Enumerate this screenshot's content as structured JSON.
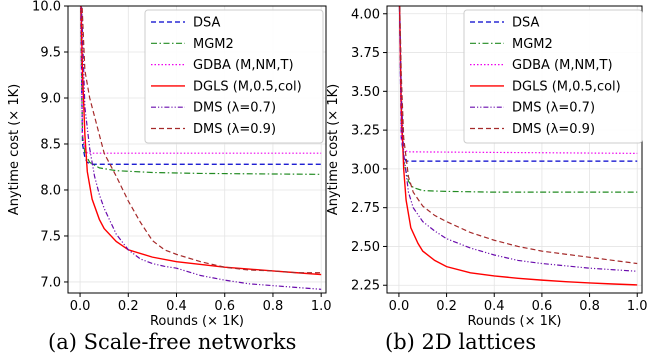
{
  "charts": [
    {
      "caption": "(a) Scale-free networks",
      "chart_data": {
        "type": "line",
        "title": "",
        "xlabel": "Rounds (× 1K)",
        "ylabel": "Anytime cost (× 1K)",
        "xlim": [
          -0.05,
          1.02
        ],
        "ylim": [
          6.88,
          10.0
        ],
        "xticks": [
          "0.0",
          "0.2",
          "0.4",
          "0.6",
          "0.8",
          "1.0"
        ],
        "xtick_values": [
          0.0,
          0.2,
          0.4,
          0.6,
          0.8,
          1.0
        ],
        "yticks": [
          "7.0",
          "7.5",
          "8.0",
          "8.5",
          "9.0",
          "9.5",
          "10.0"
        ],
        "ytick_values": [
          7.0,
          7.5,
          8.0,
          8.5,
          9.0,
          9.5,
          10.0
        ],
        "grid": true,
        "legend_position": "top-right",
        "series": [
          {
            "name": "DSA",
            "color": "#0000cc",
            "dash": "dashed",
            "x": [
              0,
              0.01,
              0.02,
              0.03,
              0.05,
              0.1,
              1.0
            ],
            "y": [
              10.5,
              8.5,
              8.35,
              8.3,
              8.28,
              8.28,
              8.28
            ]
          },
          {
            "name": "MGM2",
            "color": "#228B22",
            "dash": "dashdot",
            "x": [
              0,
              0.01,
              0.02,
              0.04,
              0.08,
              0.15,
              0.3,
              0.5,
              1.0
            ],
            "y": [
              10.5,
              8.6,
              8.4,
              8.3,
              8.24,
              8.21,
              8.19,
              8.18,
              8.17
            ]
          },
          {
            "name": "GDBA (M,NM,T)",
            "color": "#ee00ee",
            "dash": "dotted",
            "x": [
              0,
              0.01,
              0.02,
              0.03,
              1.0
            ],
            "y": [
              10.5,
              8.6,
              8.45,
              8.4,
              8.4
            ]
          },
          {
            "name": "DGLS (M,0.5,col)",
            "color": "#ff0000",
            "dash": "solid",
            "x": [
              0,
              0.01,
              0.02,
              0.03,
              0.05,
              0.08,
              0.1,
              0.15,
              0.2,
              0.3,
              0.4,
              0.5,
              0.6,
              0.7,
              0.8,
              0.9,
              1.0
            ],
            "y": [
              10.5,
              9.3,
              8.6,
              8.2,
              7.9,
              7.68,
              7.58,
              7.44,
              7.35,
              7.27,
              7.22,
              7.19,
              7.16,
              7.14,
              7.12,
              7.1,
              7.08
            ]
          },
          {
            "name": "DMS (λ=0.7)",
            "color": "#6a0dad",
            "dash": "dashdotdot",
            "x": [
              0,
              0.02,
              0.04,
              0.06,
              0.08,
              0.1,
              0.15,
              0.2,
              0.25,
              0.3,
              0.35,
              0.4,
              0.5,
              0.6,
              0.7,
              0.8,
              0.9,
              1.0
            ],
            "y": [
              10.5,
              8.9,
              8.45,
              8.15,
              7.95,
              7.8,
              7.52,
              7.35,
              7.25,
              7.2,
              7.17,
              7.15,
              7.07,
              7.02,
              6.98,
              6.96,
              6.94,
              6.92
            ]
          },
          {
            "name": "DMS (λ=0.9)",
            "color": "#a52a2a",
            "dash": "dashed",
            "x": [
              0,
              0.02,
              0.04,
              0.06,
              0.08,
              0.1,
              0.15,
              0.2,
              0.25,
              0.3,
              0.35,
              0.4,
              0.5,
              0.6,
              0.7,
              0.8,
              0.9,
              1.0
            ],
            "y": [
              10.5,
              9.3,
              9.0,
              8.8,
              8.6,
              8.4,
              8.15,
              7.88,
              7.65,
              7.45,
              7.35,
              7.3,
              7.22,
              7.16,
              7.13,
              7.12,
              7.1,
              7.1
            ]
          }
        ]
      }
    },
    {
      "caption": "(b) 2D lattices",
      "chart_data": {
        "type": "line",
        "title": "",
        "xlabel": "Rounds (× 1K)",
        "ylabel": "Anytime cost (× 1K)",
        "xlim": [
          -0.05,
          1.02
        ],
        "ylim": [
          2.2,
          4.05
        ],
        "xticks": [
          "0.0",
          "0.2",
          "0.4",
          "0.6",
          "0.8",
          "1.0"
        ],
        "xtick_values": [
          0.0,
          0.2,
          0.4,
          0.6,
          0.8,
          1.0
        ],
        "yticks": [
          "2.25",
          "2.50",
          "2.75",
          "3.00",
          "3.25",
          "3.50",
          "3.75",
          "4.00"
        ],
        "ytick_values": [
          2.25,
          2.5,
          2.75,
          3.0,
          3.25,
          3.5,
          3.75,
          4.0
        ],
        "grid": true,
        "legend_position": "top-right",
        "series": [
          {
            "name": "DSA",
            "color": "#0000cc",
            "dash": "dashed",
            "x": [
              0,
              0.01,
              0.02,
              0.03,
              0.05,
              1.0
            ],
            "y": [
              4.3,
              3.2,
              3.08,
              3.05,
              3.05,
              3.05
            ]
          },
          {
            "name": "MGM2",
            "color": "#228B22",
            "dash": "dashdot",
            "x": [
              0,
              0.01,
              0.02,
              0.04,
              0.06,
              0.1,
              0.2,
              0.4,
              1.0
            ],
            "y": [
              4.3,
              3.3,
              3.05,
              2.92,
              2.88,
              2.86,
              2.855,
              2.85,
              2.85
            ]
          },
          {
            "name": "GDBA (M,NM,T)",
            "color": "#ee00ee",
            "dash": "dotted",
            "x": [
              0,
              0.01,
              0.02,
              0.04,
              1.0
            ],
            "y": [
              4.3,
              3.2,
              3.12,
              3.11,
              3.1
            ]
          },
          {
            "name": "DGLS (M,0.5,col)",
            "color": "#ff0000",
            "dash": "solid",
            "x": [
              0,
              0.01,
              0.02,
              0.03,
              0.05,
              0.08,
              0.1,
              0.15,
              0.2,
              0.3,
              0.4,
              0.5,
              0.6,
              0.7,
              0.8,
              0.9,
              1.0
            ],
            "y": [
              4.3,
              3.4,
              3.0,
              2.8,
              2.62,
              2.52,
              2.47,
              2.41,
              2.37,
              2.33,
              2.31,
              2.295,
              2.283,
              2.273,
              2.265,
              2.258,
              2.252
            ]
          },
          {
            "name": "DMS (λ=0.7)",
            "color": "#6a0dad",
            "dash": "dashdotdot",
            "x": [
              0,
              0.01,
              0.02,
              0.04,
              0.06,
              0.1,
              0.15,
              0.2,
              0.3,
              0.4,
              0.5,
              0.6,
              0.7,
              0.8,
              0.9,
              1.0
            ],
            "y": [
              4.3,
              3.5,
              3.1,
              2.85,
              2.75,
              2.66,
              2.6,
              2.55,
              2.49,
              2.445,
              2.41,
              2.39,
              2.375,
              2.36,
              2.35,
              2.34
            ]
          },
          {
            "name": "DMS (λ=0.9)",
            "color": "#a52a2a",
            "dash": "dashed",
            "x": [
              0,
              0.01,
              0.02,
              0.04,
              0.06,
              0.1,
              0.15,
              0.2,
              0.3,
              0.4,
              0.5,
              0.6,
              0.7,
              0.8,
              0.9,
              1.0
            ],
            "y": [
              4.3,
              3.6,
              3.2,
              2.95,
              2.85,
              2.76,
              2.7,
              2.66,
              2.59,
              2.54,
              2.5,
              2.47,
              2.45,
              2.43,
              2.41,
              2.39
            ]
          }
        ]
      }
    }
  ]
}
